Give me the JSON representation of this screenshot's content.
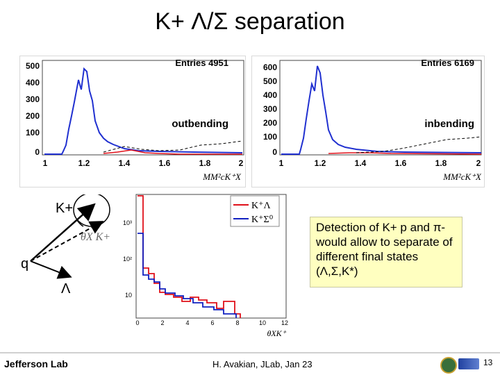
{
  "title": "K+ Λ/Σ separation",
  "panels": [
    {
      "entries": "Entries 4951",
      "region": "outbending",
      "y_ticks": [
        "500",
        "400",
        "300",
        "200",
        "100",
        "0"
      ],
      "x_ticks": [
        "1",
        "1.2",
        "1.4",
        "1.6",
        "1.8",
        "2"
      ],
      "xlabel": "MM²cK⁺X"
    },
    {
      "entries": "Entries 6169",
      "region": "inbending",
      "y_ticks": [
        "600",
        "500",
        "400",
        "300",
        "200",
        "100",
        "0"
      ],
      "x_ticks": [
        "1",
        "1.2",
        "1.4",
        "1.6",
        "1.8",
        "2"
      ],
      "xlabel": "MM²cK⁺X"
    }
  ],
  "diagram": {
    "kplus_label": "K+",
    "q_label": "q",
    "lambda_label": "Λ",
    "theta_label": "θX K+"
  },
  "chart_data": {
    "type": "line",
    "series": [
      {
        "name": "K⁺Λ",
        "color": "#e0101a"
      },
      {
        "name": "K⁺Σ⁰",
        "color": "#1020c0"
      }
    ],
    "y_ticks": [
      "10³",
      "10²",
      "10"
    ],
    "x_ticks": [
      "0",
      "2",
      "4",
      "6",
      "8",
      "10",
      "12"
    ],
    "xlabel": "θXK⁺"
  },
  "textbox": {
    "text": "Detection of K+ p and π- would allow to separate of different final states (Λ,Σ,K*)"
  },
  "footer": {
    "logo": "Jefferson Lab",
    "center": "H. Avakian, JLab, Jan 23",
    "page": "13"
  }
}
